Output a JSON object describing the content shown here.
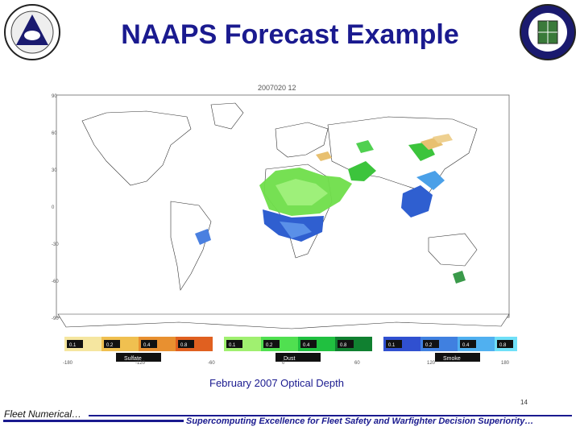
{
  "slide": {
    "title": "NAAPS Forecast Example",
    "caption": "February 2007 Optical Depth",
    "page_number": "14",
    "footer_left": "Fleet Numerical…",
    "footer_right": "Supercomputing Excellence for Fleet Safety and Warfighter Decision Superiority…"
  },
  "map": {
    "header": "2007020 12",
    "lat_labels": [
      "90",
      "60",
      "30",
      "0",
      "-30",
      "-60",
      "-90"
    ],
    "lon_labels": [
      "-180",
      "-120",
      "-60",
      "0",
      "60",
      "120",
      "180"
    ],
    "legend": {
      "groups": [
        {
          "name": "Sulfate",
          "ticks": [
            "0.1",
            "0.2",
            "0.4",
            "0.8"
          ],
          "colors": [
            "#f5e6a0",
            "#f0c050",
            "#e89030",
            "#e06020"
          ]
        },
        {
          "name": "Dust",
          "ticks": [
            "0.1",
            "0.2",
            "0.4",
            "0.8"
          ],
          "colors": [
            "#a0f070",
            "#50e050",
            "#20c040",
            "#108030"
          ]
        },
        {
          "name": "Smoke",
          "ticks": [
            "0.1",
            "0.2",
            "0.4",
            "0.8"
          ],
          "colors": [
            "#3050d0",
            "#4080e0",
            "#50b0f0",
            "#70e0f8"
          ]
        }
      ]
    },
    "colors": {
      "land": "#ffffff",
      "coast": "#333333",
      "dust": "#4ccb3c",
      "smoke": "#2f5fd0",
      "sulfate": "#e8c070"
    }
  }
}
